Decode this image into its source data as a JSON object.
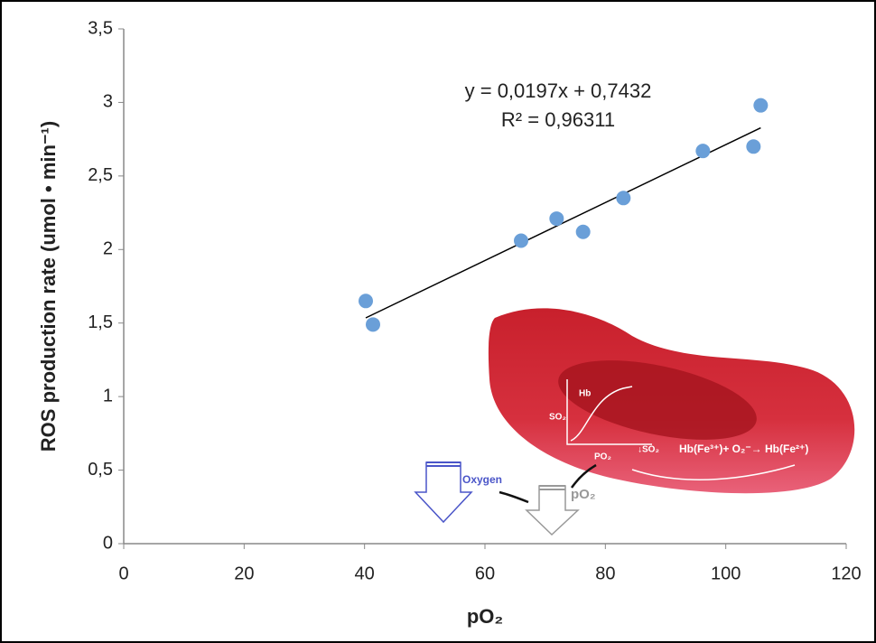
{
  "chart_data": {
    "type": "scatter",
    "xlabel": "pO₂",
    "ylabel": "ROS production rate (umol • min⁻¹)",
    "x": [
      40.2,
      41.4,
      66,
      71.9,
      76.3,
      83,
      96.2,
      104.6,
      105.8
    ],
    "series": [
      {
        "color": "#6a9fd8",
        "values": [
          1.65,
          1.49,
          2.06,
          2.21,
          2.12,
          2.35,
          2.67,
          2.7,
          2.98
        ]
      }
    ],
    "trendline": {
      "slope": 0.0197,
      "intercept": 0.7432,
      "color": "#000000",
      "label": "y = 0,0197x + 0,7432",
      "r2_label": "R² = 0,96311"
    },
    "xlim": [
      0,
      120
    ],
    "xticks": [
      0,
      20,
      40,
      60,
      80,
      100,
      120
    ],
    "ylim": [
      0,
      3.5
    ],
    "yticks": [
      0,
      {
        "value": 0.5,
        "label": "0,5"
      },
      1,
      {
        "value": 1.5,
        "label": "1,5"
      },
      2,
      {
        "value": 2.5,
        "label": "2,5"
      },
      3,
      {
        "value": 3.5,
        "label": "3,5"
      }
    ],
    "grid": false,
    "inset": {
      "hb": "Hb",
      "so2": "SO₂",
      "po2_axis": "PO₂",
      "so2_drop": "↓SO₂",
      "reaction": "Hb(Fe³⁺)+ O₂⁻→ Hb(Fe²⁺)",
      "oxygen": "Oxygen",
      "po2": "pO₂"
    }
  }
}
